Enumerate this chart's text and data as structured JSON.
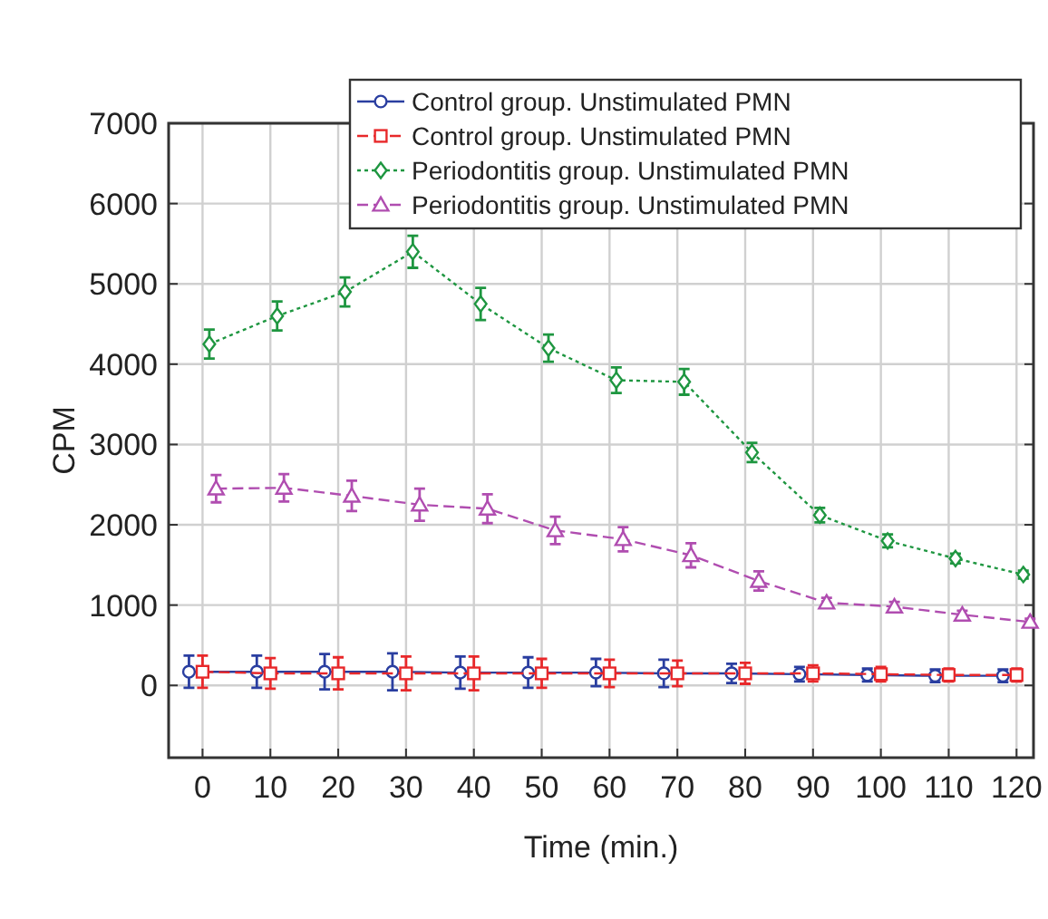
{
  "chart_data": {
    "type": "line",
    "xlabel": "Time (min.)",
    "ylabel": "CPM",
    "xlim": [
      -5,
      122.5
    ],
    "xticks": [
      0,
      10,
      20,
      30,
      40,
      50,
      60,
      70,
      80,
      90,
      100,
      110,
      120
    ],
    "ylim": [
      -900,
      7000
    ],
    "yticks": [
      0,
      1000,
      2000,
      3000,
      4000,
      5000,
      6000,
      7000
    ],
    "grid": true,
    "legend": "top right",
    "series": [
      {
        "name": "Control group. Unstimulated PMN",
        "color": "#2a3ea0",
        "marker": "circle",
        "line_style": "solid",
        "x": [
          -2,
          8,
          18,
          28,
          38,
          48,
          58,
          68,
          78,
          88,
          98,
          108,
          118
        ],
        "values": [
          170,
          170,
          170,
          170,
          160,
          160,
          160,
          150,
          150,
          140,
          130,
          120,
          120
        ],
        "errors": [
          200,
          200,
          220,
          230,
          200,
          190,
          170,
          170,
          120,
          90,
          80,
          80,
          80
        ]
      },
      {
        "name": "Control group. Unstimulated PMN",
        "color": "#e8282a",
        "marker": "square",
        "line_style": "dashed",
        "x": [
          0,
          10,
          20,
          30,
          40,
          50,
          60,
          70,
          80,
          90,
          100,
          110,
          120
        ],
        "values": [
          170,
          150,
          150,
          150,
          150,
          150,
          150,
          150,
          150,
          150,
          140,
          130,
          130
        ],
        "errors": [
          200,
          190,
          200,
          210,
          210,
          180,
          170,
          160,
          130,
          100,
          90,
          80,
          80
        ]
      },
      {
        "name": "Periodontitis group. Unstimulated PMN",
        "color": "#1e9640",
        "marker": "diamond",
        "line_style": "dotted",
        "x": [
          1,
          11,
          21,
          31,
          41,
          51,
          61,
          71,
          81,
          91,
          101,
          111,
          121
        ],
        "values": [
          4250,
          4600,
          4900,
          5400,
          4750,
          4200,
          3800,
          3780,
          2900,
          2120,
          1800,
          1580,
          1380
        ],
        "errors": [
          180,
          180,
          180,
          200,
          200,
          170,
          160,
          160,
          120,
          90,
          80,
          60,
          50
        ]
      },
      {
        "name": "Periodontitis group. Unstimulated PMN",
        "color": "#b04db0",
        "marker": "triangle",
        "line_style": "dashed",
        "x": [
          2,
          12,
          22,
          32,
          42,
          52,
          62,
          72,
          82,
          92,
          102,
          112,
          122
        ],
        "values": [
          2450,
          2460,
          2360,
          2250,
          2200,
          1930,
          1820,
          1620,
          1300,
          1030,
          980,
          880,
          790
        ],
        "errors": [
          170,
          170,
          190,
          200,
          180,
          170,
          150,
          150,
          120,
          60,
          60,
          50,
          40
        ]
      }
    ]
  }
}
